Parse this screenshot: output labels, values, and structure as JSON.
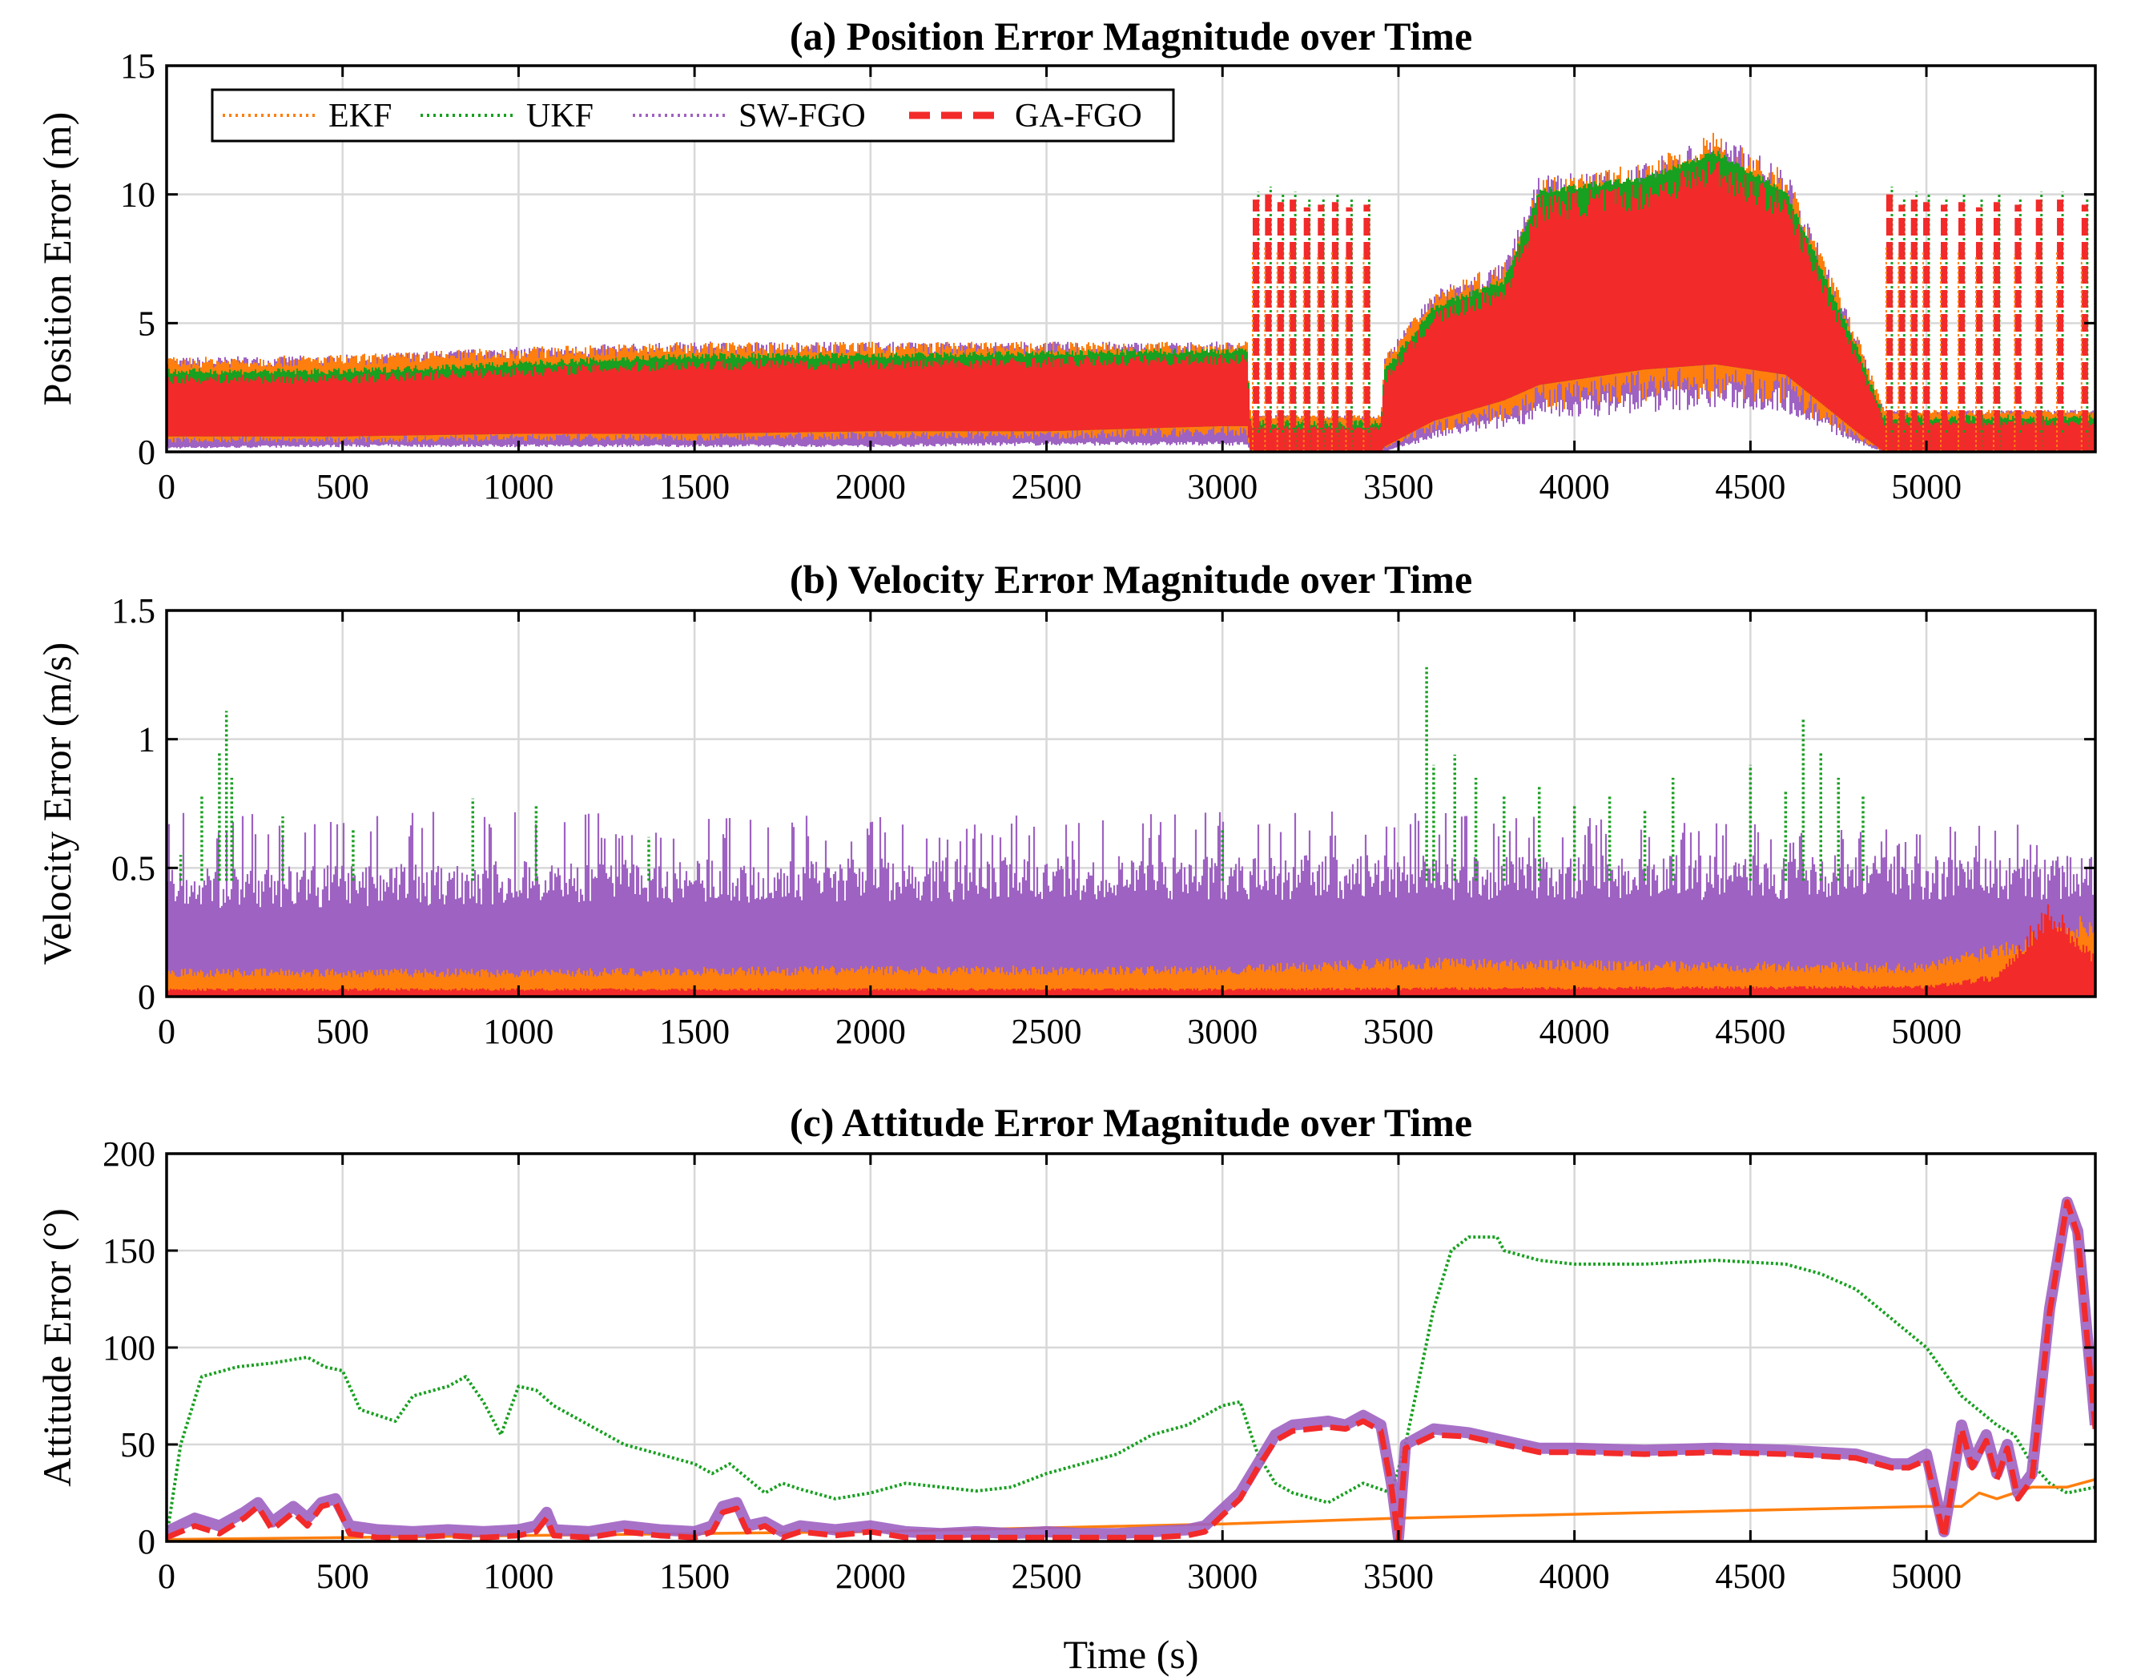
{
  "colors": {
    "EKF": "#ff7f0e",
    "UKF": "#18a020",
    "SW-FGO": "#9e62c2",
    "GA-FGO": "#f22a2a"
  },
  "legend": [
    {
      "name": "EKF",
      "color": "#ff7f0e",
      "style": "dotted"
    },
    {
      "name": "UKF",
      "color": "#18a020",
      "style": "dotted"
    },
    {
      "name": "SW-FGO",
      "color": "#9e62c2",
      "style": "dotted"
    },
    {
      "name": "GA-FGO",
      "color": "#f22a2a",
      "style": "dashed"
    }
  ],
  "chart_data": [
    {
      "type": "line",
      "title": "(a) Position Error Magnitude over Time",
      "xlabel": "",
      "ylabel": "Position Error (m)",
      "xlim": [
        0,
        5480
      ],
      "ylim": [
        0,
        15
      ],
      "xticks": [
        0,
        500,
        1000,
        1500,
        2000,
        2500,
        3000,
        3500,
        4000,
        4500,
        5000
      ],
      "yticks": [
        0,
        5,
        10,
        15
      ],
      "grid": true,
      "legend_position": "top-left",
      "band": {
        "x": [
          0,
          500,
          1000,
          1500,
          2000,
          2500,
          3000,
          3070,
          3080,
          3450,
          3460,
          3600,
          3800,
          3900,
          4200,
          4400,
          4600,
          4800,
          4880,
          4890,
          5480
        ],
        "low": [
          0.6,
          0.6,
          0.7,
          0.7,
          0.8,
          0.8,
          1.0,
          1.0,
          0.0,
          0.0,
          0.2,
          1.2,
          2.0,
          2.6,
          3.2,
          3.4,
          3.0,
          0.8,
          0.0,
          0.0,
          0.0
        ],
        "high": [
          3.0,
          3.0,
          3.3,
          3.6,
          3.6,
          3.7,
          3.8,
          3.8,
          1.0,
          1.0,
          3.0,
          5.5,
          6.5,
          10.0,
          10.5,
          11.5,
          10.0,
          4.0,
          1.2,
          1.2,
          1.2
        ],
        "outer_low": [
          0.2,
          0.3,
          0.3,
          0.3,
          0.3,
          0.4,
          0.4,
          0.4,
          0.0,
          0.0,
          0.0,
          0.8,
          1.5,
          2.0,
          2.5,
          2.8,
          2.5,
          0.5,
          0.0,
          0.0,
          0.0
        ],
        "outer_high": [
          3.6,
          3.7,
          4.0,
          4.2,
          4.2,
          4.2,
          4.2,
          4.2,
          1.4,
          1.4,
          3.6,
          6.2,
          7.2,
          10.5,
          11.0,
          12.2,
          10.8,
          4.6,
          1.6,
          1.6,
          1.6
        ]
      },
      "spikes": {
        "x": [
          3095,
          3130,
          3165,
          3200,
          3240,
          3280,
          3320,
          3360,
          3410,
          4895,
          4930,
          4965,
          5000,
          5050,
          5100,
          5150,
          5200,
          5260,
          5320,
          5380,
          5450
        ],
        "peak": [
          9.8,
          10.0,
          9.7,
          9.8,
          9.5,
          9.6,
          9.7,
          9.5,
          9.6,
          10.0,
          9.6,
          9.8,
          9.7,
          9.6,
          9.7,
          9.5,
          9.7,
          9.6,
          9.8,
          9.8,
          9.6
        ]
      }
    },
    {
      "type": "line",
      "title": "(b) Velocity Error Magnitude over Time",
      "xlabel": "",
      "ylabel": "Velocity Error (m/s)",
      "xlim": [
        0,
        5480
      ],
      "ylim": [
        0,
        1.5
      ],
      "xticks": [
        0,
        500,
        1000,
        1500,
        2000,
        2500,
        3000,
        3500,
        4000,
        4500,
        5000
      ],
      "yticks": [
        0,
        0.5,
        1,
        1.5
      ],
      "grid": true,
      "series_bands": [
        {
          "name": "SW-FGO",
          "x": [
            0,
            1000,
            2000,
            3000,
            3500,
            4000,
            5000,
            5480
          ],
          "high": [
            0.45,
            0.48,
            0.49,
            0.5,
            0.5,
            0.5,
            0.5,
            0.5
          ],
          "max": [
            0.72,
            0.72,
            0.7,
            0.72,
            0.72,
            0.7,
            0.68,
            0.66
          ]
        },
        {
          "name": "EKF",
          "x": [
            0,
            1000,
            2000,
            3000,
            3500,
            4000,
            5000,
            5200,
            5480
          ],
          "high": [
            0.1,
            0.1,
            0.11,
            0.11,
            0.14,
            0.13,
            0.12,
            0.2,
            0.3
          ]
        },
        {
          "name": "GA-FGO",
          "x": [
            0,
            1000,
            2000,
            3000,
            4000,
            5000,
            5200,
            5350,
            5480
          ],
          "high": [
            0.03,
            0.03,
            0.03,
            0.03,
            0.035,
            0.04,
            0.08,
            0.35,
            0.15
          ]
        }
      ],
      "ukf_spikes": {
        "x": [
          40,
          100,
          150,
          170,
          185,
          330,
          530,
          870,
          1050,
          1370,
          3000,
          3580,
          3600,
          3660,
          3720,
          3800,
          3900,
          4000,
          4100,
          4200,
          4280,
          4500,
          4600,
          4650,
          4700,
          4750,
          4820
        ],
        "peak": [
          0.55,
          0.78,
          0.95,
          1.11,
          0.85,
          0.7,
          0.65,
          0.77,
          0.74,
          0.62,
          0.65,
          1.28,
          0.9,
          0.94,
          0.85,
          0.78,
          0.82,
          0.74,
          0.78,
          0.73,
          0.85,
          0.9,
          0.8,
          1.08,
          0.95,
          0.85,
          0.78
        ]
      }
    },
    {
      "type": "line",
      "title": "(c) Attitude Error Magnitude over Time",
      "xlabel": "Time (s)",
      "ylabel": "Attitude Error (°)",
      "xlim": [
        0,
        5480
      ],
      "ylim": [
        0,
        200
      ],
      "xticks": [
        0,
        500,
        1000,
        1500,
        2000,
        2500,
        3000,
        3500,
        4000,
        4500,
        5000
      ],
      "yticks": [
        0,
        50,
        100,
        150,
        200
      ],
      "grid": true,
      "series": [
        {
          "name": "UKF",
          "x": [
            0,
            40,
            100,
            200,
            300,
            400,
            450,
            500,
            550,
            600,
            650,
            700,
            800,
            850,
            900,
            950,
            1000,
            1050,
            1100,
            1200,
            1300,
            1400,
            1500,
            1550,
            1600,
            1700,
            1750,
            1800,
            1900,
            2000,
            2100,
            2200,
            2300,
            2400,
            2500,
            2600,
            2700,
            2800,
            2900,
            3000,
            3050,
            3100,
            3150,
            3200,
            3300,
            3400,
            3480,
            3520,
            3600,
            3650,
            3700,
            3780,
            3800,
            3900,
            4000,
            4200,
            4400,
            4600,
            4700,
            4800,
            4900,
            5000,
            5100,
            5200,
            5250,
            5300,
            5350,
            5400,
            5480
          ],
          "y": [
            2,
            50,
            85,
            90,
            92,
            95,
            90,
            88,
            68,
            65,
            62,
            75,
            80,
            85,
            72,
            55,
            80,
            78,
            70,
            60,
            50,
            45,
            40,
            35,
            40,
            25,
            30,
            27,
            22,
            25,
            30,
            28,
            26,
            28,
            35,
            40,
            45,
            55,
            60,
            70,
            72,
            45,
            30,
            25,
            20,
            30,
            25,
            50,
            120,
            150,
            157,
            157,
            150,
            145,
            143,
            143,
            145,
            143,
            138,
            130,
            115,
            100,
            75,
            60,
            55,
            40,
            30,
            25,
            28
          ]
        },
        {
          "name": "EKF",
          "x": [
            0,
            500,
            1000,
            1500,
            2000,
            2500,
            3000,
            3500,
            4000,
            4500,
            5000,
            5100,
            5150,
            5200,
            5300,
            5400,
            5480
          ],
          "y": [
            1,
            2,
            3,
            4,
            5,
            7,
            9,
            12,
            14,
            16,
            18,
            18,
            25,
            22,
            28,
            28,
            32
          ]
        },
        {
          "name": "SW-FGO",
          "x": [
            0,
            80,
            150,
            220,
            260,
            300,
            360,
            400,
            440,
            480,
            520,
            600,
            700,
            800,
            900,
            1000,
            1050,
            1080,
            1100,
            1200,
            1300,
            1400,
            1500,
            1550,
            1580,
            1620,
            1650,
            1700,
            1750,
            1800,
            1900,
            2000,
            2100,
            2200,
            2300,
            2400,
            2500,
            2600,
            2700,
            2800,
            2900,
            2950,
            3050,
            3100,
            3150,
            3200,
            3300,
            3350,
            3400,
            3450,
            3480,
            3500,
            3520,
            3600,
            3700,
            3800,
            3900,
            4000,
            4200,
            4400,
            4600,
            4800,
            4900,
            4950,
            5000,
            5050,
            5100,
            5130,
            5170,
            5200,
            5230,
            5260,
            5300,
            5350,
            5400,
            5430,
            5480
          ],
          "y": [
            5,
            12,
            8,
            15,
            20,
            10,
            18,
            12,
            20,
            22,
            8,
            6,
            5,
            6,
            5,
            6,
            8,
            15,
            6,
            5,
            8,
            6,
            5,
            8,
            18,
            20,
            8,
            10,
            5,
            8,
            6,
            8,
            5,
            4,
            5,
            4,
            5,
            4,
            4,
            5,
            6,
            8,
            25,
            40,
            55,
            60,
            62,
            60,
            65,
            60,
            30,
            2,
            50,
            58,
            56,
            52,
            48,
            48,
            47,
            48,
            47,
            45,
            40,
            40,
            45,
            5,
            60,
            40,
            55,
            35,
            50,
            25,
            35,
            120,
            175,
            160,
            60
          ]
        },
        {
          "name": "GA-FGO",
          "x": [
            0,
            80,
            150,
            220,
            260,
            300,
            360,
            400,
            440,
            480,
            520,
            600,
            700,
            800,
            900,
            1000,
            1050,
            1080,
            1100,
            1200,
            1300,
            1400,
            1500,
            1550,
            1580,
            1620,
            1650,
            1700,
            1750,
            1800,
            1900,
            2000,
            2100,
            2200,
            2300,
            2400,
            2500,
            2600,
            2700,
            2800,
            2900,
            2950,
            3050,
            3100,
            3150,
            3200,
            3300,
            3350,
            3400,
            3450,
            3480,
            3500,
            3520,
            3600,
            3700,
            3800,
            3900,
            4000,
            4200,
            4400,
            4600,
            4800,
            4900,
            4950,
            5000,
            5050,
            5100,
            5130,
            5170,
            5200,
            5230,
            5260,
            5300,
            5350,
            5400,
            5430,
            5480
          ],
          "y": [
            2,
            8,
            4,
            12,
            18,
            6,
            15,
            8,
            18,
            20,
            4,
            2,
            2,
            3,
            2,
            3,
            5,
            12,
            3,
            2,
            5,
            3,
            2,
            5,
            15,
            17,
            5,
            8,
            2,
            5,
            3,
            5,
            2,
            2,
            2,
            2,
            2,
            2,
            2,
            2,
            3,
            5,
            22,
            38,
            52,
            57,
            59,
            58,
            62,
            57,
            28,
            0,
            48,
            55,
            54,
            50,
            46,
            46,
            45,
            46,
            45,
            43,
            38,
            38,
            42,
            2,
            58,
            38,
            52,
            32,
            48,
            22,
            32,
            118,
            175,
            158,
            58
          ]
        }
      ]
    }
  ]
}
